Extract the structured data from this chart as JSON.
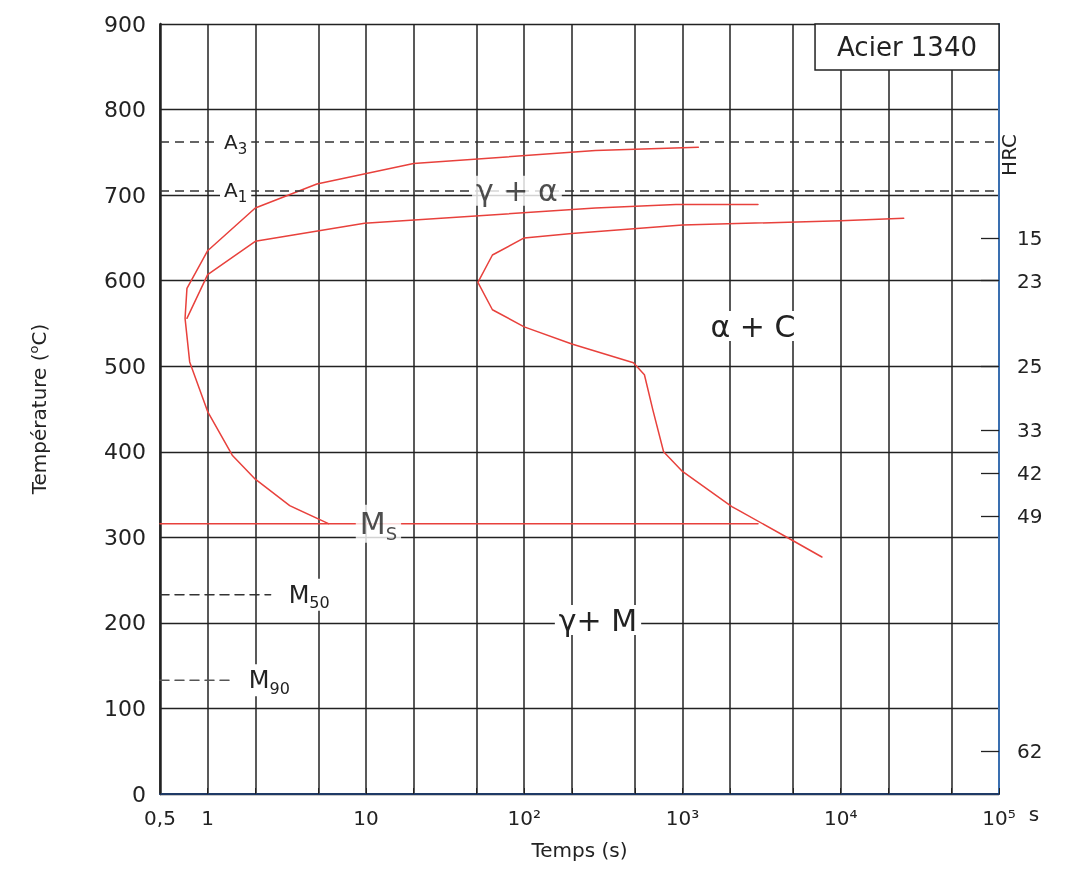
{
  "chart_data": {
    "type": "line",
    "title": "Acier 1340",
    "xlabel": "Temps (s)",
    "ylabel": "Température ($^{o}$C)",
    "y2label": "HRC",
    "log": "x",
    "grid": true,
    "legend": false,
    "marker": "none",
    "xlim": [
      0.5,
      100000
    ],
    "xticks": [
      {
        "value": 0.5,
        "label": "0,5"
      },
      1,
      {
        "value": 2,
        "label": null
      },
      {
        "value": 5,
        "label": null
      },
      10,
      {
        "value": 20,
        "label": null
      },
      {
        "value": 50,
        "label": null
      },
      {
        "value": 100,
        "label": "10²"
      },
      {
        "value": 200,
        "label": null
      },
      {
        "value": 500,
        "label": null
      },
      {
        "value": 1000,
        "label": "10³"
      },
      {
        "value": 2000,
        "label": null
      },
      {
        "value": 5000,
        "label": null
      },
      {
        "value": 10000,
        "label": "10⁴"
      },
      {
        "value": 20000,
        "label": null
      },
      {
        "value": 50000,
        "label": null
      },
      {
        "value": 100000,
        "label": "10⁵"
      }
    ],
    "ylim": [
      0,
      900
    ],
    "yticks": [
      0,
      100,
      200,
      300,
      400,
      500,
      600,
      700,
      800,
      900
    ],
    "y2_categories": [
      null,
      null,
      null,
      null,
      null,
      null,
      null,
      null,
      null,
      null,
      "15",
      null,
      "23",
      null,
      null,
      null,
      "25",
      null,
      null,
      "33",
      null,
      "42",
      null,
      "49",
      null,
      null,
      null,
      null,
      null,
      null,
      null,
      null,
      null,
      null,
      "62",
      null,
      null
    ],
    "series": [
      {
        "color": "#e8413c",
        "line_style": "solid",
        "x": [
          1260,
          282,
          20,
          4.9,
          2.0,
          1.0,
          0.74,
          0.72,
          0.77,
          1.0,
          1.43,
          2.0,
          3.3,
          5.8
        ],
        "values": [
          756,
          752,
          737,
          713,
          685,
          635,
          591,
          556,
          505,
          447,
          396,
          368,
          337,
          316
        ]
      },
      {
        "color": "#e8413c",
        "line_style": "solid",
        "x": [
          3000,
          910,
          282,
          9.8,
          2.0,
          1.0,
          0.74
        ],
        "values": [
          689,
          689,
          685,
          667,
          646,
          607,
          556
        ]
      },
      {
        "color": "#e8413c",
        "line_style": "solid",
        "x": [
          25000,
          10000,
          1000,
          200,
          100,
          63,
          51,
          63,
          100,
          200,
          490,
          575,
          650,
          760,
          1000,
          2050,
          5000,
          7600
        ],
        "values": [
          673,
          670,
          665,
          655,
          650,
          630,
          598,
          566,
          546,
          526,
          504,
          490,
          449,
          400,
          377,
          336,
          296,
          277
        ]
      },
      {
        "color": "#e8413c",
        "line_style": "solid",
        "x": [
          0.5,
          3000
        ],
        "values": [
          316,
          316
        ]
      },
      {
        "name": "M$_{50}$",
        "color": "#333333",
        "line_style": "dashed",
        "x": [
          0.5,
          2.5
        ],
        "values": [
          233,
          233
        ]
      },
      {
        "name": "M$_{90}$",
        "color": "#555555",
        "line_style": "dashed",
        "x": [
          0.5,
          1.4
        ],
        "values": [
          133,
          133
        ]
      }
    ],
    "ref_lines": [
      {
        "axis": "y",
        "value": 762,
        "label": "A$_{3}$",
        "color": "#333333",
        "line_style": "dashed"
      },
      {
        "axis": "y",
        "value": 705,
        "label": "A$_{1}$",
        "color": "#333333",
        "line_style": "dashed"
      }
    ],
    "annotations": [
      {
        "text": "γ + α",
        "x": 90,
        "y": 705
      },
      "α + C",
      "γ+ M",
      {
        "text": "M$_{S}$",
        "x": 12,
        "y": 316
      },
      "s"
    ]
  }
}
